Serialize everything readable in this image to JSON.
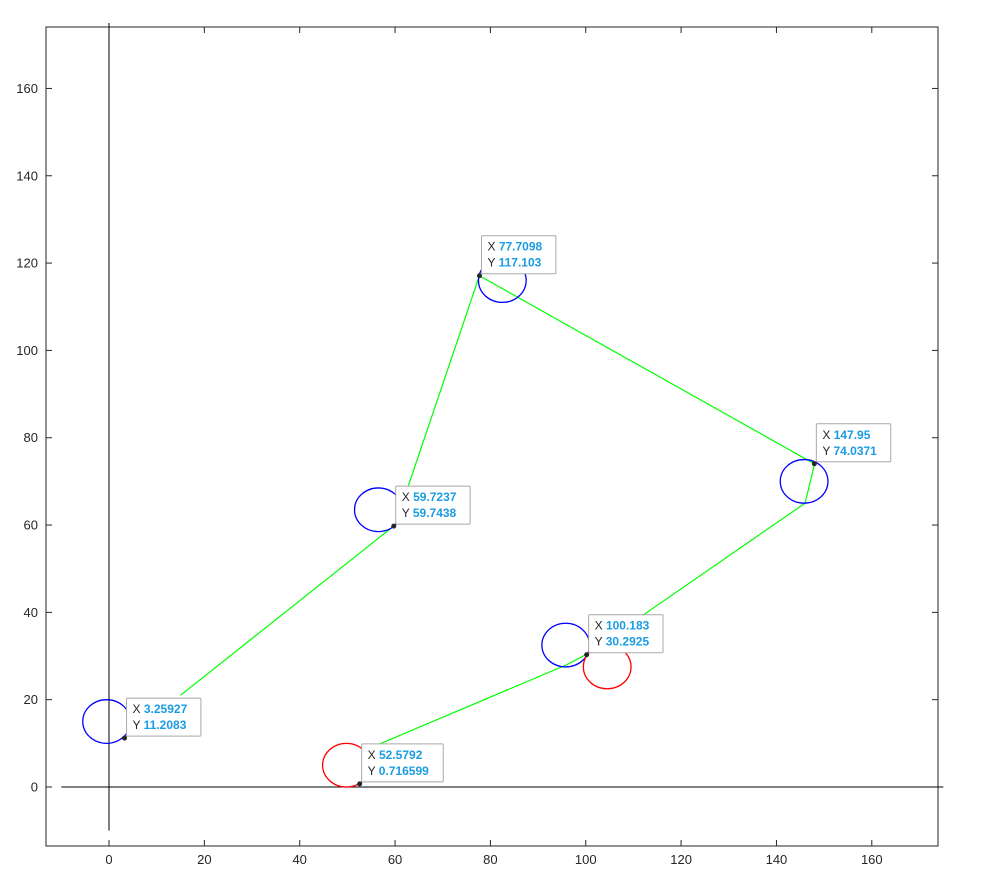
{
  "chart_data": {
    "type": "line",
    "title": "",
    "xlabel": "",
    "ylabel": "",
    "xlim": [
      -13,
      175
    ],
    "ylim": [
      -10,
      175
    ],
    "x_ticks": [
      0,
      20,
      40,
      60,
      80,
      100,
      120,
      140,
      160
    ],
    "y_ticks": [
      0,
      20,
      40,
      60,
      80,
      100,
      120,
      140,
      160
    ],
    "grid": false,
    "legend": "none",
    "colors": {
      "path": "#00ff00",
      "blue": "#0000ff",
      "red": "#ff0000",
      "axis_lines": "#000000",
      "datatip_value": "#1a9ce3"
    },
    "reference_lines": [
      {
        "orientation": "horizontal",
        "value": 0,
        "from": -10,
        "to": 175
      },
      {
        "orientation": "vertical",
        "value": 0,
        "from": -10,
        "to": 175
      }
    ],
    "series": [
      {
        "type": "line",
        "color": "#00ff00",
        "segments": [
          [
            [
              15,
              21
            ],
            [
              60,
              60
            ]
          ],
          [
            [
              60,
              60
            ],
            [
              77.7,
              117.1
            ]
          ],
          [
            [
              77.7,
              117.1
            ],
            [
              148,
              74
            ]
          ],
          [
            [
              148,
              74
            ],
            [
              146,
              65
            ]
          ],
          [
            [
              146,
              65
            ],
            [
              100,
              30.3
            ]
          ],
          [
            [
              100,
              30.3
            ],
            [
              96,
              28
            ]
          ],
          [
            [
              96,
              28
            ],
            [
              56,
              9.5
            ]
          ]
        ]
      }
    ],
    "circles": [
      {
        "cx": -0.5,
        "cy": 15,
        "r": 5,
        "color": "#0000ff"
      },
      {
        "cx": 56.5,
        "cy": 63.5,
        "r": 5,
        "color": "#0000ff"
      },
      {
        "cx": 82.5,
        "cy": 116,
        "r": 5,
        "color": "#0000ff"
      },
      {
        "cx": 145.8,
        "cy": 70,
        "r": 5,
        "color": "#0000ff"
      },
      {
        "cx": 95.8,
        "cy": 32.5,
        "r": 5,
        "color": "#0000ff"
      },
      {
        "cx": 104.5,
        "cy": 27.5,
        "r": 5,
        "color": "#ff0000"
      },
      {
        "cx": 49.8,
        "cy": 5,
        "r": 5,
        "color": "#ff0000"
      }
    ],
    "datatips": [
      {
        "x": 3.25927,
        "y": 11.2083,
        "x_text": "3.25927",
        "y_text": "11.2083"
      },
      {
        "x": 59.7237,
        "y": 59.7438,
        "x_text": "59.7237",
        "y_text": "59.7438"
      },
      {
        "x": 77.7098,
        "y": 117.103,
        "x_text": "77.7098",
        "y_text": "117.103"
      },
      {
        "x": 147.95,
        "y": 74.0371,
        "x_text": "147.95",
        "y_text": "74.0371"
      },
      {
        "x": 100.183,
        "y": 30.2925,
        "x_text": "100.183",
        "y_text": "30.2925"
      },
      {
        "x": 52.5792,
        "y": 0.716599,
        "x_text": "52.5792",
        "y_text": "0.716599"
      }
    ],
    "datatip_labels": {
      "x": "X",
      "y": "Y"
    }
  }
}
